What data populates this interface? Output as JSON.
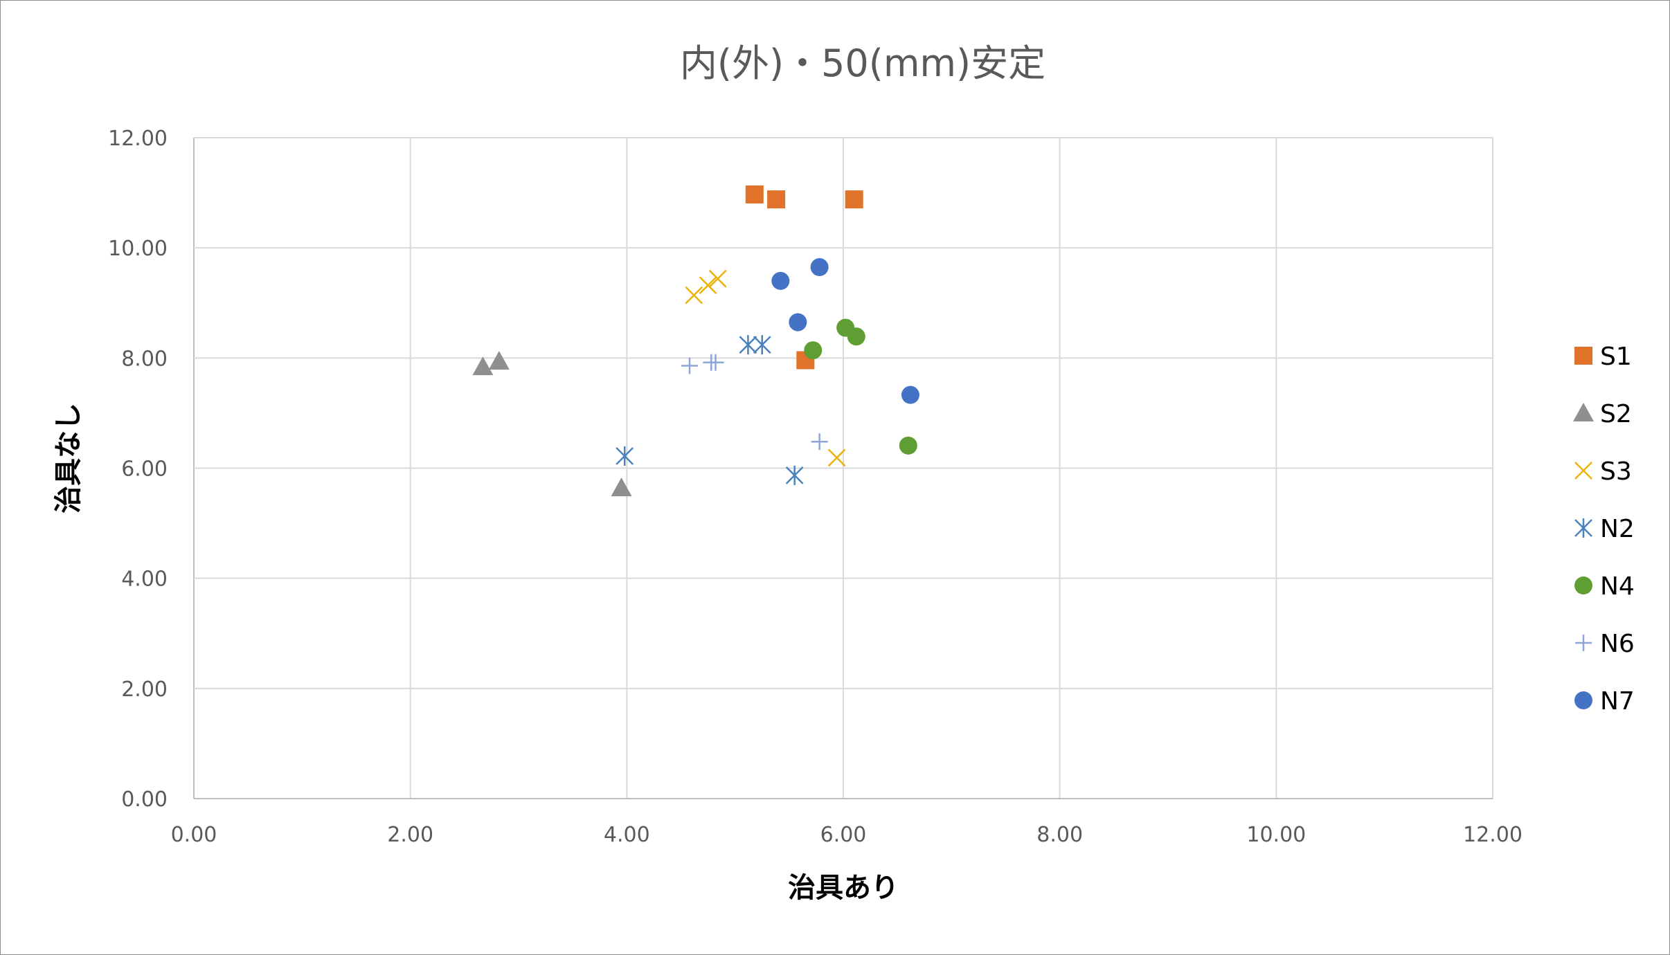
{
  "chart_data": {
    "type": "scatter",
    "title": "内(外)・50(mm)安定",
    "xlabel": "治具あり",
    "ylabel": "治具なし",
    "xlim": [
      0,
      12
    ],
    "ylim": [
      0,
      12
    ],
    "x_ticks": [
      "0.00",
      "2.00",
      "4.00",
      "6.00",
      "8.00",
      "10.00",
      "12.00"
    ],
    "y_ticks": [
      "0.00",
      "2.00",
      "4.00",
      "6.00",
      "8.00",
      "10.00",
      "12.00"
    ],
    "grid": true,
    "legend_position": "right",
    "series": [
      {
        "name": "S1",
        "marker": "square",
        "color": "#E07229",
        "points": [
          [
            5.18,
            10.97
          ],
          [
            5.38,
            10.88
          ],
          [
            6.1,
            10.88
          ],
          [
            5.65,
            7.96
          ]
        ]
      },
      {
        "name": "S2",
        "marker": "triangle",
        "color": "#8F8F8F",
        "points": [
          [
            2.67,
            7.84
          ],
          [
            2.82,
            7.94
          ],
          [
            3.95,
            5.64
          ]
        ]
      },
      {
        "name": "S3",
        "marker": "x",
        "color": "#EBB20A",
        "points": [
          [
            4.62,
            9.14
          ],
          [
            4.75,
            9.32
          ],
          [
            4.84,
            9.44
          ],
          [
            5.94,
            6.19
          ]
        ]
      },
      {
        "name": "N2",
        "marker": "asterisk",
        "color": "#4A82BE",
        "points": [
          [
            3.98,
            6.22
          ],
          [
            5.12,
            8.24
          ],
          [
            5.25,
            8.24
          ],
          [
            5.55,
            5.87
          ]
        ]
      },
      {
        "name": "N4",
        "marker": "circle",
        "color": "#5E9E33",
        "points": [
          [
            5.72,
            8.14
          ],
          [
            6.02,
            8.55
          ],
          [
            6.12,
            8.39
          ],
          [
            6.6,
            6.41
          ]
        ]
      },
      {
        "name": "N6",
        "marker": "plus",
        "color": "#8DA5D8",
        "points": [
          [
            4.58,
            7.86
          ],
          [
            4.78,
            7.92
          ],
          [
            4.82,
            7.92
          ],
          [
            5.78,
            6.48
          ]
        ]
      },
      {
        "name": "N7",
        "marker": "circle",
        "color": "#4472C4",
        "points": [
          [
            5.42,
            9.4
          ],
          [
            5.58,
            8.65
          ],
          [
            5.78,
            9.65
          ],
          [
            6.62,
            7.33
          ]
        ]
      }
    ]
  },
  "colors": {
    "grid": "#D9D9D9",
    "axis": "#BFBFBF",
    "frame": "#8C8C8C",
    "text": "#595959"
  }
}
